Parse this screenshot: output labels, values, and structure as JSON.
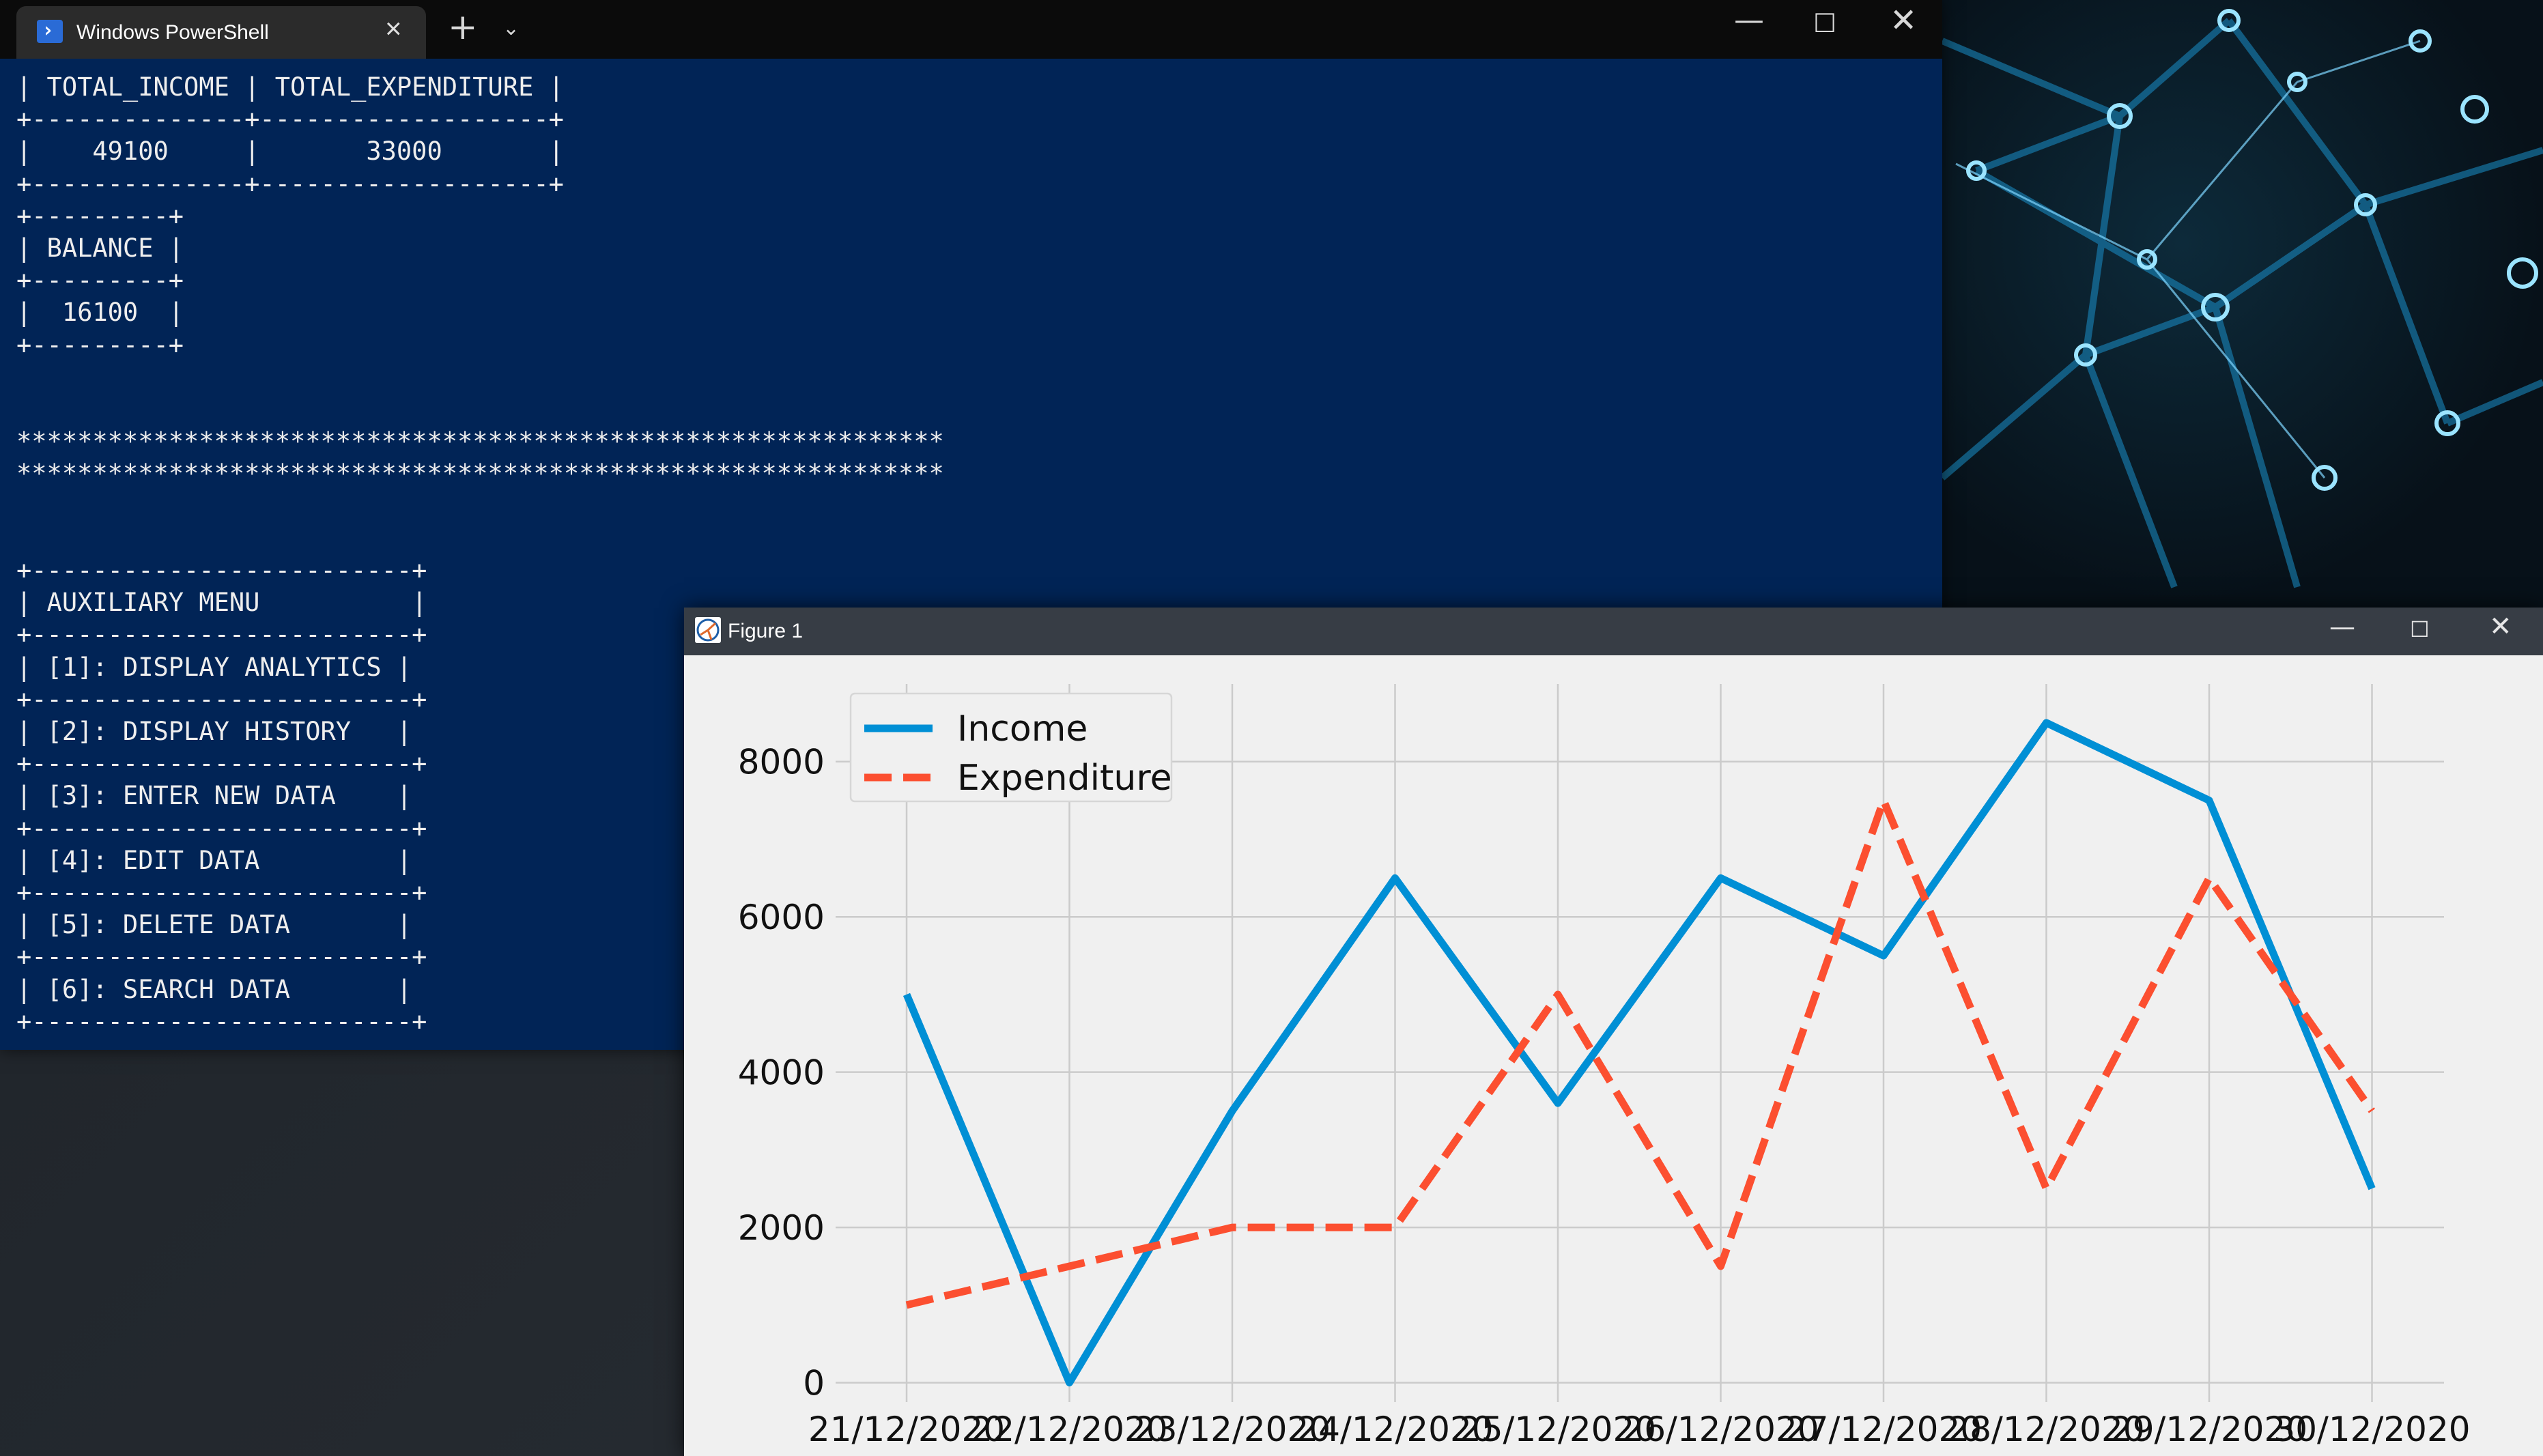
{
  "terminal": {
    "tab_title": "Windows PowerShell",
    "new_tab_glyph": "+",
    "dropdown_glyph": "⌄",
    "window_controls": {
      "minimize": "—",
      "maximize": "☐",
      "close": "✕"
    },
    "output": "| TOTAL_INCOME | TOTAL_EXPENDITURE |\n+--------------+-------------------+\n|    49100     |       33000       |\n+--------------+-------------------+\n+---------+\n| BALANCE |\n+---------+\n|  16100  |\n+---------+\n\n\n*************************************************************\n*************************************************************\n\n\n+-------------------------+\n| AUXILIARY MENU          |\n+-------------------------+\n| [1]: DISPLAY ANALYTICS |\n+-------------------------+\n| [2]: DISPLAY HISTORY   |\n+-------------------------+\n| [3]: ENTER NEW DATA    |\n+-------------------------+\n| [4]: EDIT DATA         |\n+-------------------------+\n| [5]: DELETE DATA       |\n+-------------------------+\n| [6]: SEARCH DATA       |\n+-------------------------+"
  },
  "figure_window": {
    "title": "Figure 1",
    "icon": "matplotlib-figure-icon",
    "window_controls": {
      "minimize": "—",
      "maximize": "☐",
      "close": "✕"
    }
  },
  "chart_data": {
    "type": "line",
    "title": "",
    "xlabel": "",
    "ylabel": "",
    "categories": [
      "21/12/2020",
      "22/12/2020",
      "23/12/2020",
      "24/12/2020",
      "25/12/2020",
      "26/12/2020",
      "27/12/2020",
      "28/12/2020",
      "29/12/2020",
      "30/12/2020"
    ],
    "series": [
      {
        "name": "Income",
        "values": [
          5000,
          0,
          3500,
          6500,
          3600,
          6500,
          5500,
          8500,
          7500,
          2500
        ],
        "color": "#008fd5",
        "style": "solid"
      },
      {
        "name": "Expenditure",
        "values": [
          1000,
          1500,
          2000,
          2000,
          5000,
          1500,
          7500,
          2500,
          6500,
          3500
        ],
        "color": "#fc4f30",
        "style": "dashed"
      }
    ],
    "yticks": [
      0,
      2000,
      4000,
      6000,
      8000
    ],
    "ylim": [
      -250,
      9000
    ],
    "grid": true,
    "legend": "upper-left",
    "style": "fivethirtyeight"
  }
}
